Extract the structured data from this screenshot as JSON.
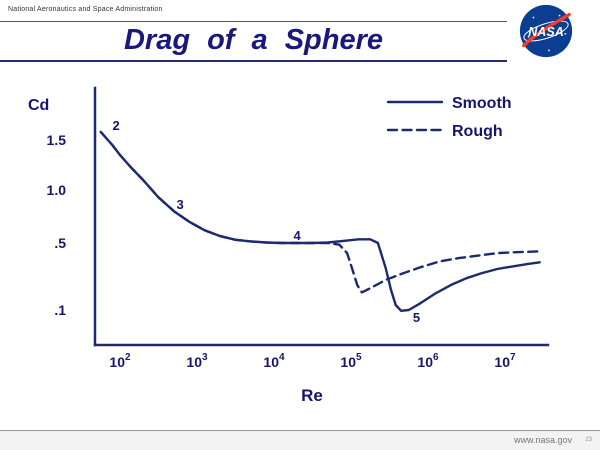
{
  "header": {
    "agency_line": "National Aeronautics and Space Administration",
    "title": "Drag of a Sphere",
    "logo_text": "NASA"
  },
  "footer": {
    "url": "www.nasa.gov",
    "page": "23"
  },
  "chart_data": {
    "type": "line",
    "title": "Drag of a Sphere",
    "xlabel": "Re",
    "ylabel": "Cd",
    "x_scale": "log",
    "grid": false,
    "legend_position": "top-right",
    "x_tick_base": "10",
    "x_ticks": [
      2,
      3,
      4,
      5,
      6,
      7
    ],
    "y_ticks": [
      1.5,
      1.0,
      0.5,
      0.1
    ],
    "y_tick_labels": [
      "1.5",
      "1.0",
      ".5",
      ".1"
    ],
    "points_format": "[log10(Re), Cd]",
    "legend": [
      {
        "name": "Smooth",
        "style": "solid"
      },
      {
        "name": "Rough",
        "style": "dashed"
      }
    ],
    "series": [
      {
        "name": "Smooth",
        "style": "solid",
        "points": [
          [
            1.75,
            1.58
          ],
          [
            1.9,
            1.45
          ],
          [
            2.0,
            1.35
          ],
          [
            2.15,
            1.22
          ],
          [
            2.3,
            1.1
          ],
          [
            2.5,
            0.93
          ],
          [
            2.7,
            0.8
          ],
          [
            2.9,
            0.7
          ],
          [
            3.1,
            0.62
          ],
          [
            3.3,
            0.565
          ],
          [
            3.5,
            0.53
          ],
          [
            3.7,
            0.515
          ],
          [
            3.9,
            0.505
          ],
          [
            4.1,
            0.5
          ],
          [
            4.3,
            0.5
          ],
          [
            4.5,
            0.5
          ],
          [
            4.7,
            0.505
          ],
          [
            4.9,
            0.52
          ],
          [
            5.1,
            0.535
          ],
          [
            5.25,
            0.535
          ],
          [
            5.35,
            0.5
          ],
          [
            5.45,
            0.35
          ],
          [
            5.52,
            0.22
          ],
          [
            5.58,
            0.13
          ],
          [
            5.65,
            0.095
          ],
          [
            5.75,
            0.1
          ],
          [
            5.9,
            0.14
          ],
          [
            6.1,
            0.2
          ],
          [
            6.3,
            0.25
          ],
          [
            6.5,
            0.29
          ],
          [
            6.7,
            0.32
          ],
          [
            6.9,
            0.345
          ],
          [
            7.1,
            0.36
          ],
          [
            7.3,
            0.375
          ],
          [
            7.45,
            0.385
          ]
        ]
      },
      {
        "name": "Rough",
        "style": "dashed",
        "points": [
          [
            1.75,
            1.58
          ],
          [
            1.9,
            1.45
          ],
          [
            2.0,
            1.35
          ],
          [
            2.15,
            1.22
          ],
          [
            2.3,
            1.1
          ],
          [
            2.5,
            0.93
          ],
          [
            2.7,
            0.8
          ],
          [
            2.9,
            0.7
          ],
          [
            3.1,
            0.62
          ],
          [
            3.3,
            0.565
          ],
          [
            3.5,
            0.53
          ],
          [
            3.7,
            0.515
          ],
          [
            3.9,
            0.505
          ],
          [
            4.1,
            0.5
          ],
          [
            4.3,
            0.5
          ],
          [
            4.5,
            0.5
          ],
          [
            4.7,
            0.5
          ],
          [
            4.85,
            0.49
          ],
          [
            4.95,
            0.44
          ],
          [
            5.02,
            0.34
          ],
          [
            5.08,
            0.25
          ],
          [
            5.14,
            0.205
          ],
          [
            5.25,
            0.23
          ],
          [
            5.45,
            0.28
          ],
          [
            5.65,
            0.315
          ],
          [
            5.9,
            0.355
          ],
          [
            6.15,
            0.39
          ],
          [
            6.4,
            0.41
          ],
          [
            6.65,
            0.425
          ],
          [
            6.9,
            0.44
          ],
          [
            7.15,
            0.445
          ],
          [
            7.45,
            0.45
          ]
        ]
      }
    ],
    "annotations": [
      {
        "label": "2",
        "log_re": 1.95,
        "cd": 1.6
      },
      {
        "label": "3",
        "log_re": 2.78,
        "cd": 0.82
      },
      {
        "label": "4",
        "log_re": 4.3,
        "cd": 0.53
      },
      {
        "label": "5",
        "log_re": 5.85,
        "cd": 0.028
      }
    ]
  }
}
